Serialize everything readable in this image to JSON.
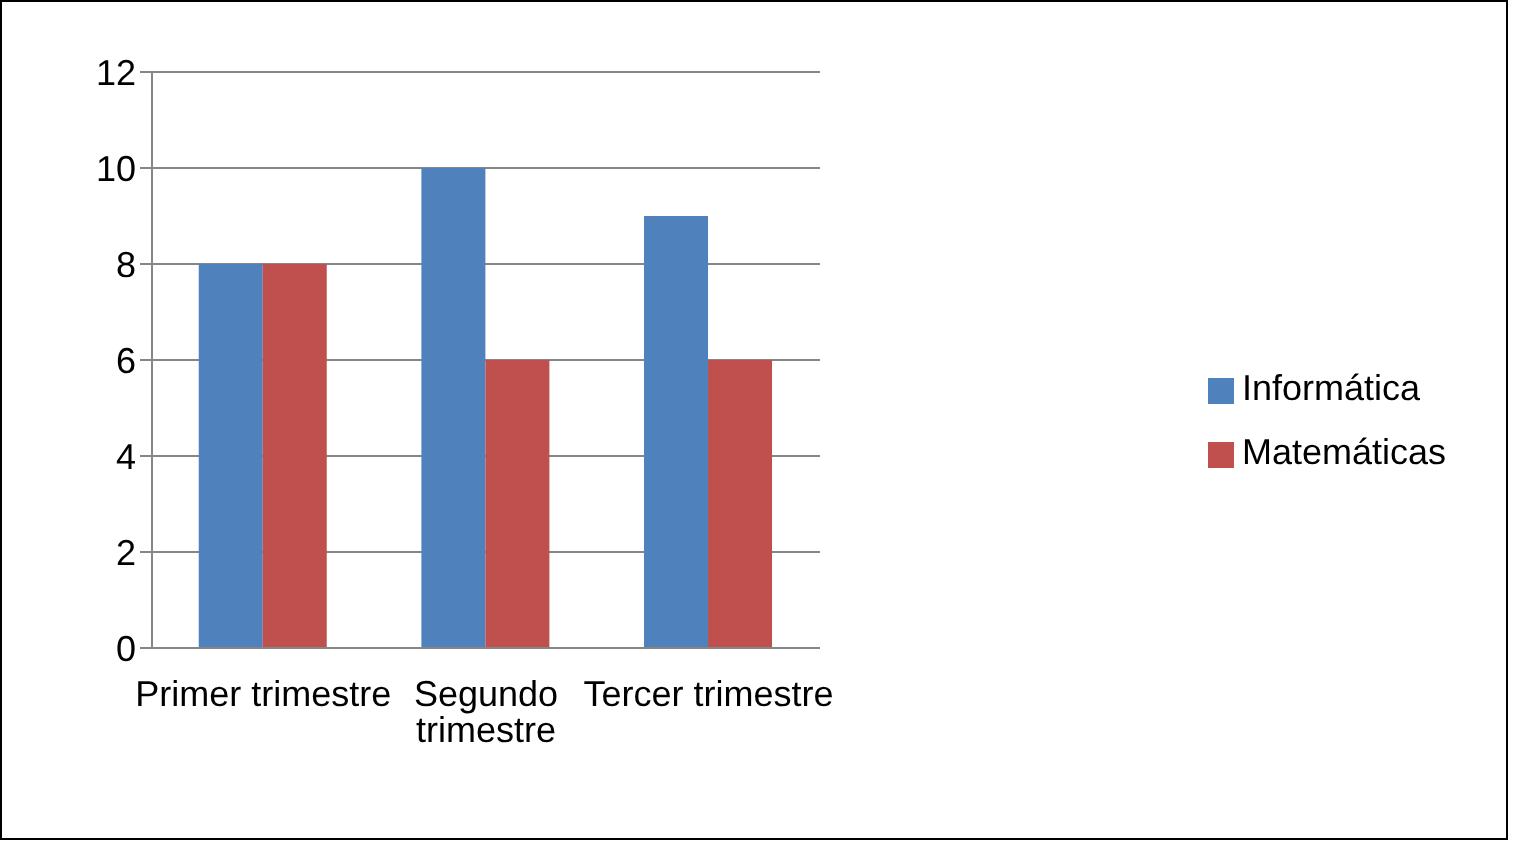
{
  "chart_data": {
    "type": "bar",
    "categories": [
      "Primer trimestre",
      "Segundo trimestre",
      "Tercer trimestre"
    ],
    "series": [
      {
        "name": "Informática",
        "color": "#4f81bd",
        "values": [
          8,
          10,
          9
        ]
      },
      {
        "name": "Matemáticas",
        "color": "#c0504d",
        "values": [
          8,
          6,
          6
        ]
      }
    ],
    "ylim": [
      0,
      12
    ],
    "yticks": [
      0,
      2,
      4,
      6,
      8,
      10,
      12
    ],
    "grid": "y",
    "legend": "right"
  }
}
